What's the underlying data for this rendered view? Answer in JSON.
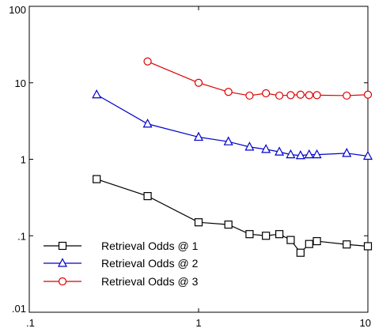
{
  "chart_data": {
    "type": "line",
    "xscale": "log",
    "yscale": "log",
    "xlim": [
      0.1,
      10
    ],
    "ylim": [
      0.01,
      100
    ],
    "x_ticks": [
      ".1",
      "1",
      "10"
    ],
    "y_ticks": [
      ".01",
      ".1",
      "1",
      "10",
      "100"
    ],
    "legend_position": "lower-left",
    "series": [
      {
        "name": "Retrieval Odds @ 1",
        "color": "#000000",
        "marker": "square",
        "x": [
          0.25,
          0.5,
          1,
          1.5,
          2,
          2.5,
          3,
          3.5,
          4,
          4.5,
          5,
          7.5,
          10
        ],
        "y": [
          0.55,
          0.33,
          0.15,
          0.14,
          0.105,
          0.1,
          0.105,
          0.088,
          0.06,
          0.078,
          0.085,
          0.077,
          0.073
        ]
      },
      {
        "name": "Retrieval Odds @ 2",
        "color": "#0000cc",
        "marker": "triangle",
        "x": [
          0.25,
          0.5,
          1,
          1.5,
          2,
          2.5,
          3,
          3.5,
          4,
          4.5,
          5,
          7.5,
          10
        ],
        "y": [
          7,
          2.9,
          1.95,
          1.7,
          1.45,
          1.35,
          1.25,
          1.15,
          1.12,
          1.15,
          1.15,
          1.2,
          1.1
        ]
      },
      {
        "name": "Retrieval Odds @ 3",
        "color": "#dd0000",
        "marker": "circle",
        "x": [
          0.5,
          1,
          1.5,
          2,
          2.5,
          3,
          3.5,
          4,
          4.5,
          5,
          7.5,
          10
        ],
        "y": [
          19,
          10,
          7.6,
          6.8,
          7.3,
          6.8,
          6.9,
          7.0,
          6.9,
          6.9,
          6.8,
          7.0
        ]
      }
    ]
  }
}
